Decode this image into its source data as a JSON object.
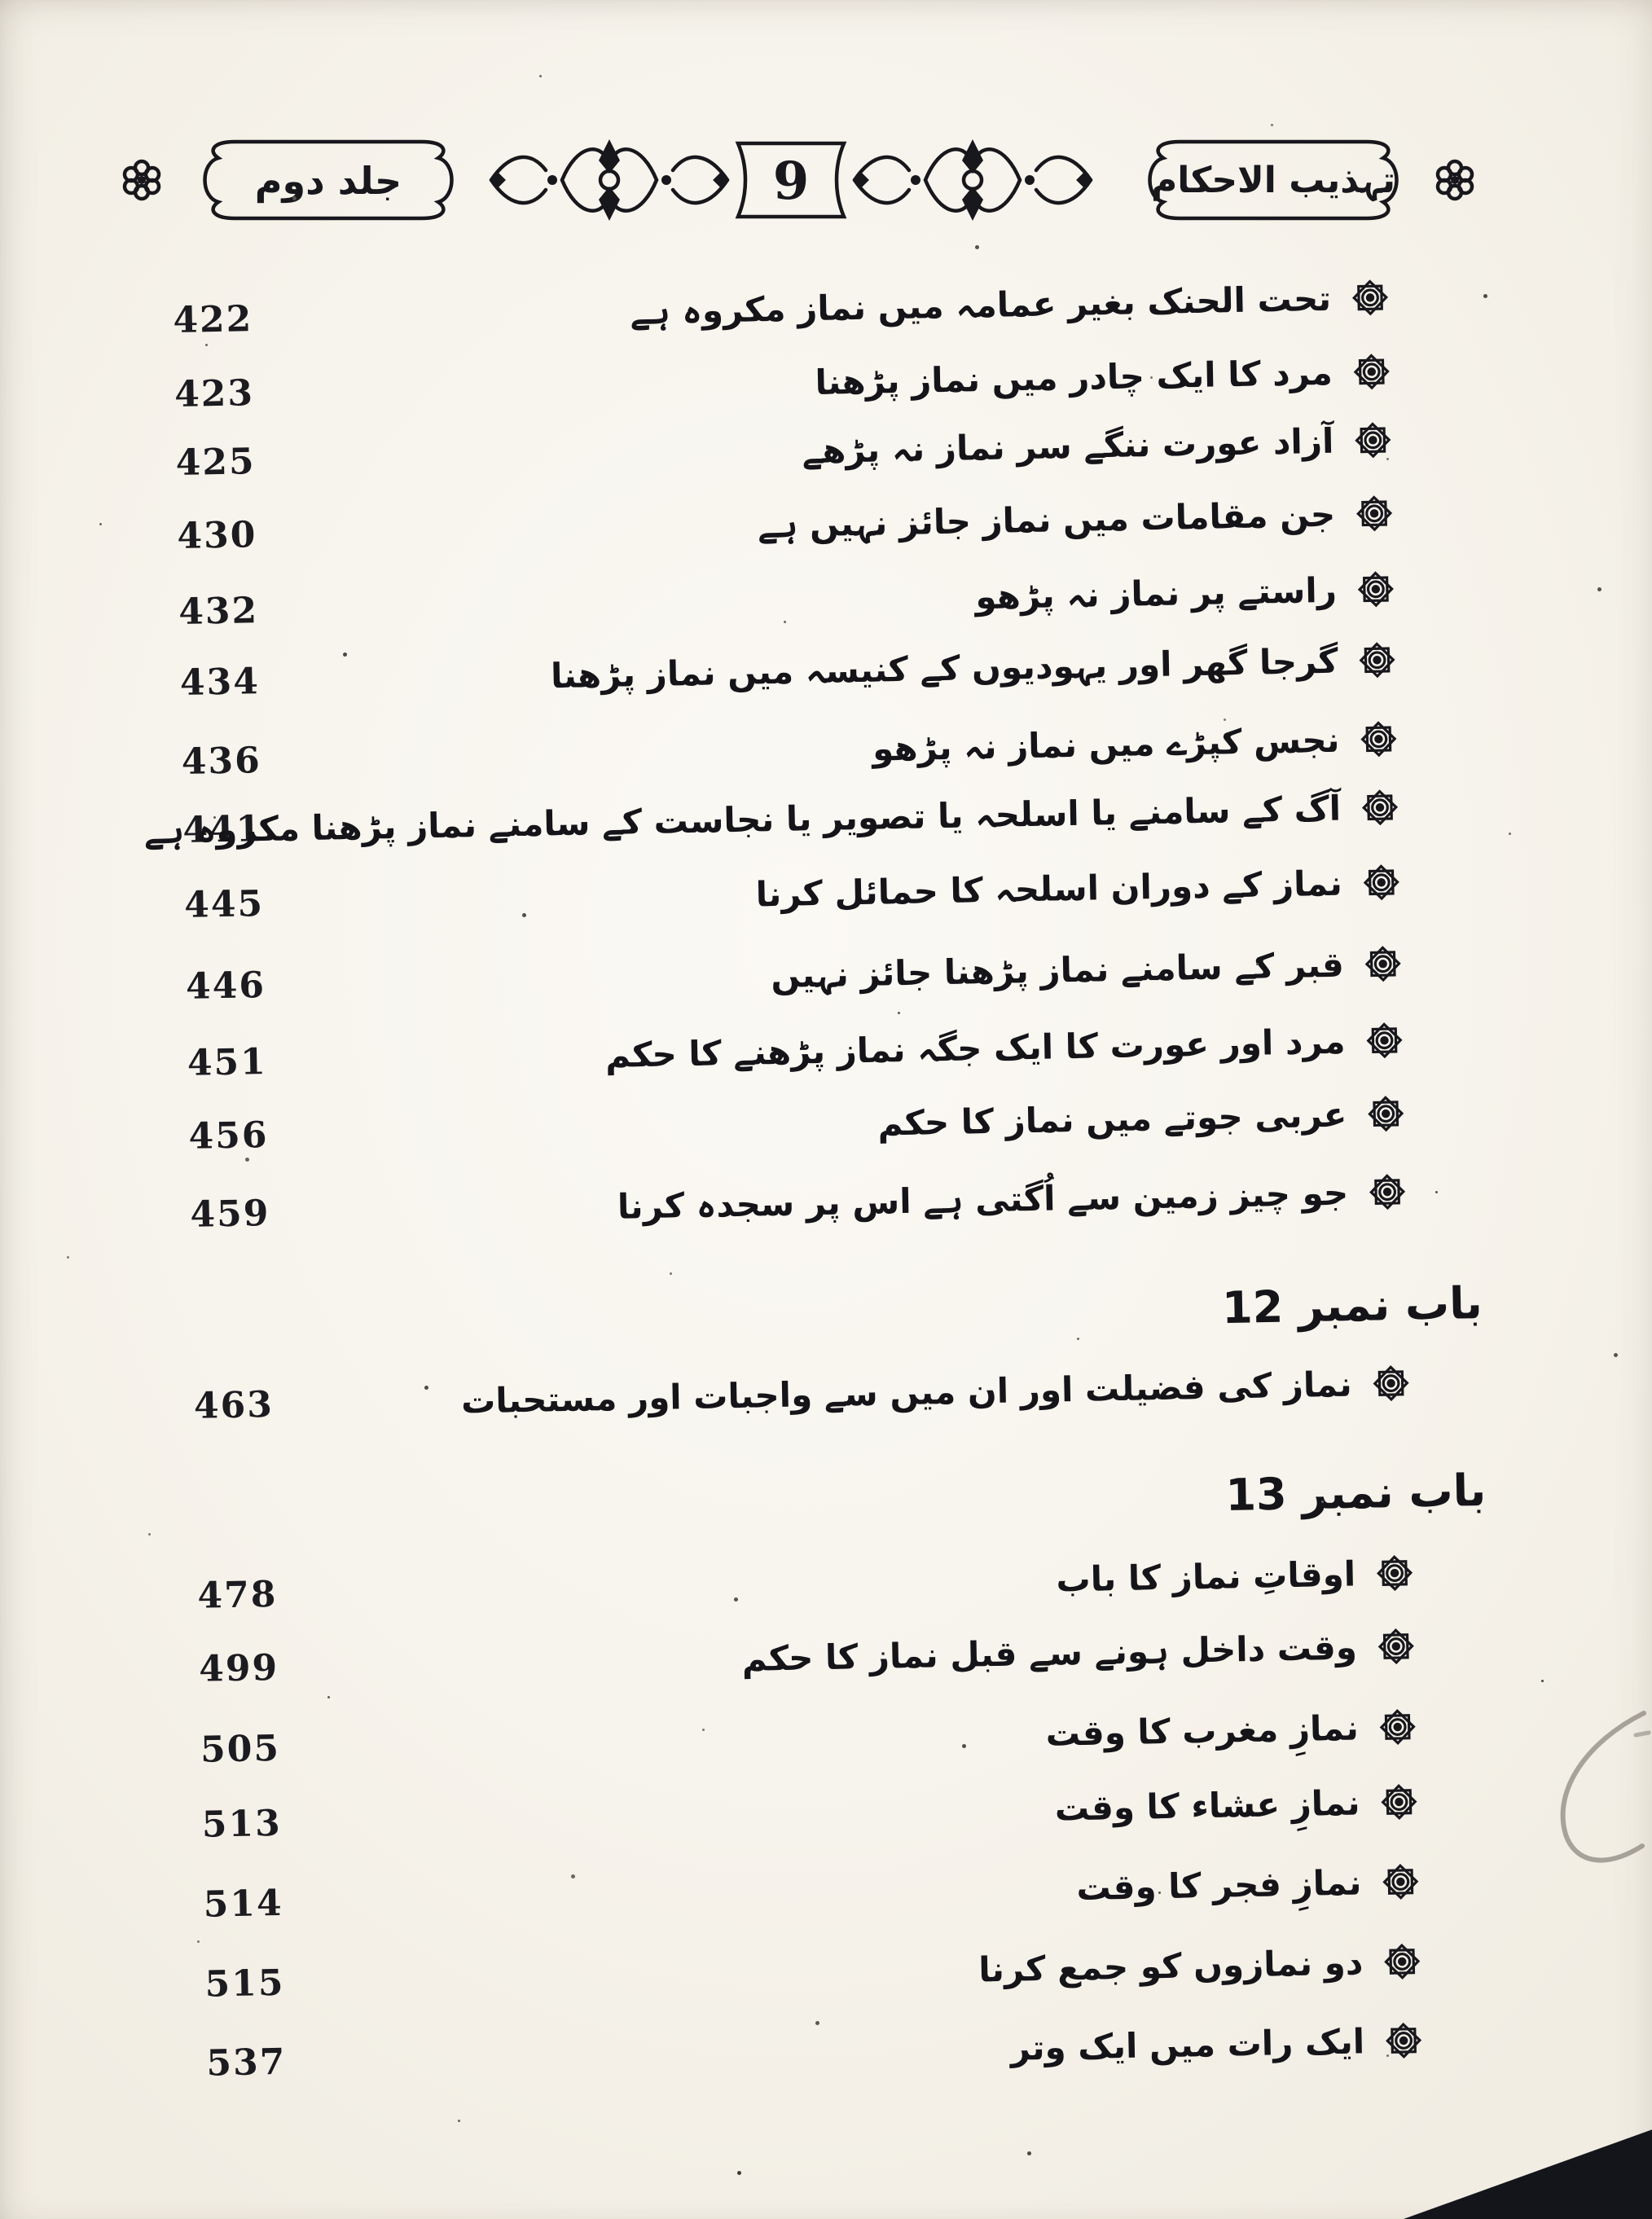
{
  "header": {
    "volume_label": "جلد دوم",
    "page_number": "9",
    "book_title": "تہذیب الاحکام"
  },
  "toc": {
    "rows": [
      {
        "type": "entry",
        "page": "422",
        "title": "تحت الحنک بغیر عمامہ میں نماز مکروہ ہے"
      },
      {
        "type": "entry",
        "page": "423",
        "title": "مرد کا ایک چادر میں نماز پڑھنا"
      },
      {
        "type": "entry",
        "page": "425",
        "title": "آزاد عورت ننگے سر نماز نہ پڑھے"
      },
      {
        "type": "entry",
        "page": "430",
        "title": "جن مقامات میں نماز جائز نہیں ہے"
      },
      {
        "type": "entry",
        "page": "432",
        "title": "راستے پر نماز نہ پڑھو"
      },
      {
        "type": "entry",
        "page": "434",
        "title": "گرجا گھر اور یہودیوں کے کنیسہ میں نماز پڑھنا"
      },
      {
        "type": "entry",
        "page": "436",
        "title": "نجس کپڑے میں نماز نہ پڑھو"
      },
      {
        "type": "entry",
        "page": "441",
        "title": "آگ کے سامنے یا اسلحہ یا تصویر یا نجاست کے سامنے نماز پڑھنا مکروہ ہے"
      },
      {
        "type": "entry",
        "page": "445",
        "title": "نماز کے دوران اسلحہ کا حمائل کرنا"
      },
      {
        "type": "entry",
        "page": "446",
        "title": "قبر کے سامنے نماز پڑھنا جائز نہیں"
      },
      {
        "type": "entry",
        "page": "451",
        "title": "مرد اور عورت کا ایک جگہ نماز پڑھنے کا حکم"
      },
      {
        "type": "entry",
        "page": "456",
        "title": "عربی جوتے میں نماز کا حکم"
      },
      {
        "type": "entry",
        "page": "459",
        "title": "جو چیز زمین سے اُگتی ہے اس پر سجدہ کرنا"
      },
      {
        "type": "chapter",
        "label": "باب نمبر 12"
      },
      {
        "type": "entry",
        "page": "463",
        "title": "نماز کی فضیلت اور ان میں سے واجبات اور مستحبات"
      },
      {
        "type": "chapter",
        "label": "باب نمبر 13"
      },
      {
        "type": "entry",
        "page": "478",
        "title": "اوقاتِ نماز کا باب"
      },
      {
        "type": "entry",
        "page": "499",
        "title": "وقت داخل ہونے سے قبل نماز کا حکم"
      },
      {
        "type": "entry",
        "page": "505",
        "title": "نمازِ مغرب کا وقت"
      },
      {
        "type": "entry",
        "page": "513",
        "title": "نمازِ عشاء کا وقت"
      },
      {
        "type": "entry",
        "page": "514",
        "title": "نمازِ فجر کا وقت"
      },
      {
        "type": "entry",
        "page": "515",
        "title": "دو نمازوں کو جمع کرنا"
      },
      {
        "type": "entry",
        "page": "537",
        "title": "ایک رات میں ایک وتر"
      }
    ]
  },
  "icons": {
    "bullet": "rosette-star-icon"
  },
  "colors": {
    "ink": "#17171c",
    "paper": "#f7f4ed",
    "pencil_mark": "#8d8880"
  }
}
